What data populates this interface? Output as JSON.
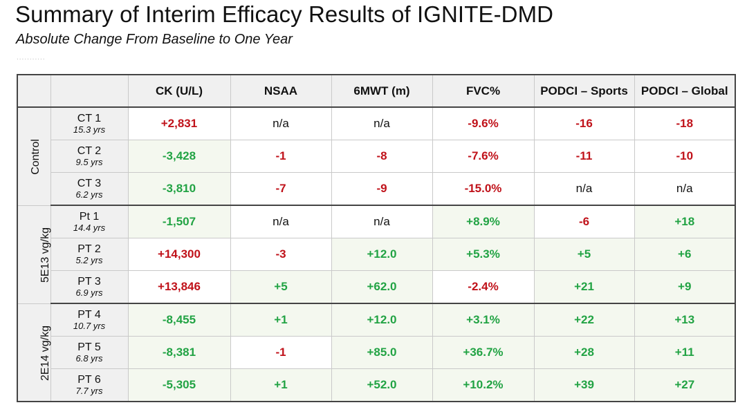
{
  "title": "Summary of Interim Efficacy Results of IGNITE-DMD",
  "subtitle": "Absolute Change From Baseline to One Year",
  "dots": "...........",
  "table": {
    "headers": [
      "CK (U/L)",
      "NSAA",
      "6MWT (m)",
      "FVC%",
      "PODCI – Sports",
      "PODCI – Global"
    ],
    "groups": [
      {
        "label": "Control",
        "rows": [
          {
            "id": "CT 1",
            "age": "15.3 yrs",
            "values": [
              "+2,831",
              "n/a",
              "n/a",
              "-9.6%",
              "-16",
              "-18"
            ],
            "tones": [
              "neg",
              "na",
              "na",
              "neg",
              "neg",
              "neg"
            ],
            "tints": [
              "plain",
              "plain",
              "plain",
              "plain",
              "plain",
              "plain"
            ]
          },
          {
            "id": "CT 2",
            "age": "9.5 yrs",
            "values": [
              "-3,428",
              "-1",
              "-8",
              "-7.6%",
              "-11",
              "-10"
            ],
            "tones": [
              "pos",
              "neg",
              "neg",
              "neg",
              "neg",
              "neg"
            ],
            "tints": [
              "green",
              "plain",
              "plain",
              "plain",
              "plain",
              "plain"
            ]
          },
          {
            "id": "CT 3",
            "age": "6.2 yrs",
            "values": [
              "-3,810",
              "-7",
              "-9",
              "-15.0%",
              "n/a",
              "n/a"
            ],
            "tones": [
              "pos",
              "neg",
              "neg",
              "neg",
              "na",
              "na"
            ],
            "tints": [
              "green",
              "plain",
              "plain",
              "plain",
              "plain",
              "plain"
            ]
          }
        ]
      },
      {
        "label": "5E13 vg/kg",
        "rows": [
          {
            "id": "Pt 1",
            "age": "14.4 yrs",
            "values": [
              "-1,507",
              "n/a",
              "n/a",
              "+8.9%",
              "-6",
              "+18"
            ],
            "tones": [
              "pos",
              "na",
              "na",
              "pos",
              "neg",
              "pos"
            ],
            "tints": [
              "green",
              "plain",
              "plain",
              "green",
              "plain",
              "green"
            ]
          },
          {
            "id": "PT 2",
            "age": "5.2 yrs",
            "values": [
              "+14,300",
              "-3",
              "+12.0",
              "+5.3%",
              "+5",
              "+6"
            ],
            "tones": [
              "neg",
              "neg",
              "pos",
              "pos",
              "pos",
              "pos"
            ],
            "tints": [
              "plain",
              "plain",
              "green",
              "green",
              "green",
              "green"
            ]
          },
          {
            "id": "PT 3",
            "age": "6.9 yrs",
            "values": [
              "+13,846",
              "+5",
              "+62.0",
              "-2.4%",
              "+21",
              "+9"
            ],
            "tones": [
              "neg",
              "pos",
              "pos",
              "neg",
              "pos",
              "pos"
            ],
            "tints": [
              "plain",
              "green",
              "green",
              "plain",
              "green",
              "green"
            ]
          }
        ]
      },
      {
        "label": "2E14 vg/kg",
        "rows": [
          {
            "id": "PT 4",
            "age": "10.7 yrs",
            "values": [
              "-8,455",
              "+1",
              "+12.0",
              "+3.1%",
              "+22",
              "+13"
            ],
            "tones": [
              "pos",
              "pos",
              "pos",
              "pos",
              "pos",
              "pos"
            ],
            "tints": [
              "green",
              "green",
              "green",
              "green",
              "green",
              "green"
            ]
          },
          {
            "id": "PT 5",
            "age": "6.8 yrs",
            "values": [
              "-8,381",
              "-1",
              "+85.0",
              "+36.7%",
              "+28",
              "+11"
            ],
            "tones": [
              "pos",
              "neg",
              "pos",
              "pos",
              "pos",
              "pos"
            ],
            "tints": [
              "green",
              "plain",
              "green",
              "green",
              "green",
              "green"
            ]
          },
          {
            "id": "PT 6",
            "age": "7.7 yrs",
            "values": [
              "-5,305",
              "+1",
              "+52.0",
              "+10.2%",
              "+39",
              "+27"
            ],
            "tones": [
              "pos",
              "pos",
              "pos",
              "pos",
              "pos",
              "pos"
            ],
            "tints": [
              "green",
              "green",
              "green",
              "green",
              "green",
              "green"
            ]
          }
        ]
      }
    ]
  },
  "colors": {
    "positive": "#22a344",
    "negative": "#c0121a",
    "header_bg": "#f0f0f0",
    "positive_tint": "#f4f8ef"
  }
}
